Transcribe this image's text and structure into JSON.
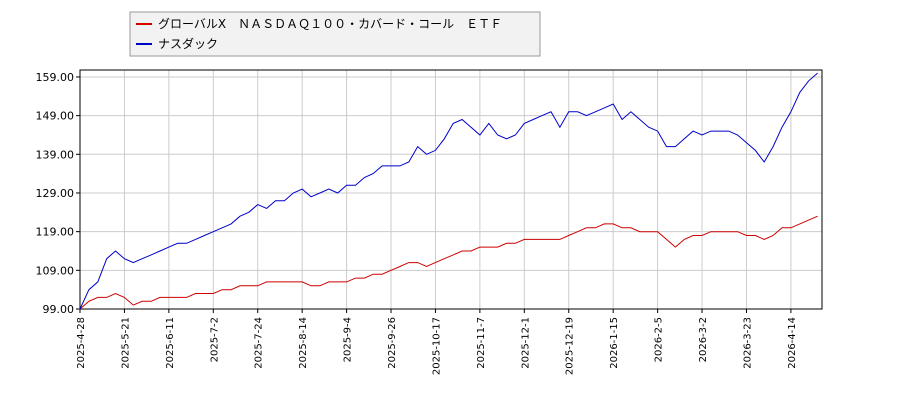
{
  "chart_data": {
    "type": "line",
    "categories": [
      "2025-4-28",
      null,
      null,
      null,
      null,
      "2025-5-21",
      null,
      null,
      null,
      null,
      "2025-6-11",
      null,
      null,
      null,
      null,
      "2025-7-2",
      null,
      null,
      null,
      null,
      "2025-7-24",
      null,
      null,
      null,
      null,
      "2025-8-14",
      null,
      null,
      null,
      null,
      "2025-9-4",
      null,
      null,
      null,
      null,
      "2025-9-26",
      null,
      null,
      null,
      null,
      "2025-10-17",
      null,
      null,
      null,
      null,
      "2025-11-7",
      null,
      null,
      null,
      null,
      "2025-12-1",
      null,
      null,
      null,
      null,
      "2025-12-19",
      null,
      null,
      null,
      null,
      "2026-1-15",
      null,
      null,
      null,
      null,
      "2026-2-5",
      null,
      null,
      null,
      null,
      "2026-3-2",
      null,
      null,
      null,
      null,
      "2026-3-23",
      null,
      null,
      null,
      null,
      "2026-4-14",
      null,
      null,
      null
    ],
    "series": [
      {
        "name": "グローバルX　ＮＡＳＤＡＱ１００・カバード・コール　ＥＴＦ",
        "color": "#cc0000",
        "values": [
          99,
          101,
          102,
          102,
          103,
          102,
          100,
          101,
          101,
          102,
          102,
          102,
          102,
          103,
          103,
          103,
          104,
          104,
          105,
          105,
          105,
          106,
          106,
          106,
          106,
          106,
          105,
          105,
          106,
          106,
          106,
          107,
          107,
          108,
          108,
          109,
          110,
          111,
          111,
          110,
          111,
          112,
          113,
          114,
          114,
          115,
          115,
          115,
          116,
          116,
          117,
          117,
          117,
          117,
          117,
          118,
          119,
          120,
          120,
          121,
          121,
          120,
          120,
          119,
          119,
          119,
          117,
          115,
          117,
          118,
          118,
          119,
          119,
          119,
          119,
          118,
          118,
          117,
          118,
          120,
          120,
          121,
          122,
          123
        ]
      },
      {
        "name": "ナスダック",
        "color": "#0000cc",
        "values": [
          99,
          104,
          106,
          112,
          114,
          112,
          111,
          112,
          113,
          114,
          115,
          116,
          116,
          117,
          118,
          119,
          120,
          121,
          123,
          124,
          126,
          125,
          127,
          127,
          129,
          130,
          128,
          129,
          130,
          129,
          131,
          131,
          133,
          134,
          136,
          136,
          136,
          137,
          141,
          139,
          140,
          143,
          147,
          148,
          146,
          144,
          147,
          144,
          143,
          144,
          147,
          148,
          149,
          150,
          146,
          150,
          150,
          149,
          150,
          151,
          152,
          148,
          150,
          148,
          146,
          145,
          141,
          141,
          143,
          145,
          144,
          145,
          145,
          145,
          144,
          142,
          140,
          137,
          141,
          146,
          150,
          155,
          158,
          160
        ]
      }
    ],
    "ylim": [
      99,
      160.8
    ],
    "yticks": [
      {
        "value": 99,
        "label": "99.00"
      },
      {
        "value": 109,
        "label": "109.00"
      },
      {
        "value": 119,
        "label": "119.00"
      },
      {
        "value": 129,
        "label": "129.00"
      },
      {
        "value": 139,
        "label": "139.00"
      },
      {
        "value": 149,
        "label": "149.00"
      },
      {
        "value": 159,
        "label": "159.00"
      }
    ],
    "grid": true
  }
}
